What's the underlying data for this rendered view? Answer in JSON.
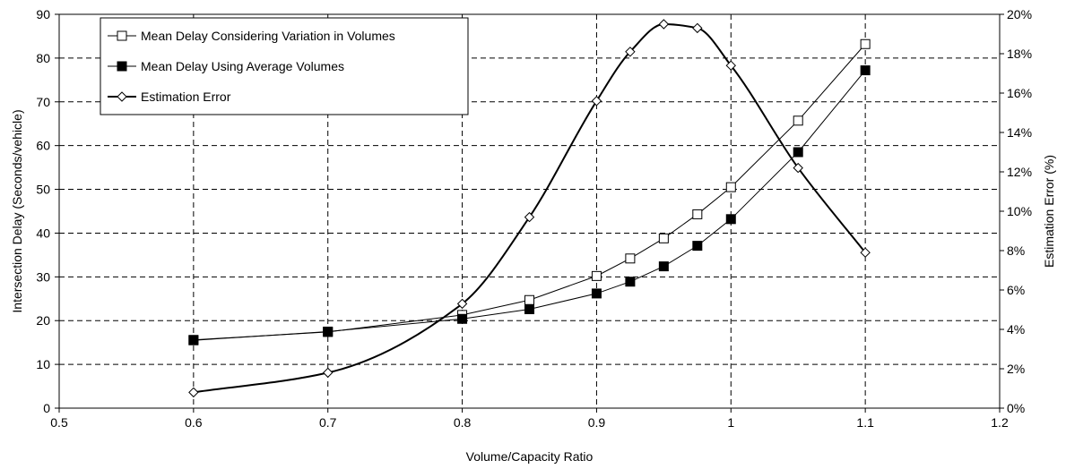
{
  "chart_data": {
    "type": "line",
    "xlabel": "Volume/Capacity Ratio",
    "ylabel": "Intersection Delay (Seconds/vehicle)",
    "y2label": "Estimation Error (%)",
    "xlim": [
      0.5,
      1.2
    ],
    "ylim": [
      0,
      90
    ],
    "y2lim": [
      0,
      20
    ],
    "x_ticks": [
      "0.5",
      "0.6",
      "0.7",
      "0.8",
      "0.9",
      "1",
      "1.1",
      "1.2"
    ],
    "y_ticks": [
      "0",
      "10",
      "20",
      "30",
      "40",
      "50",
      "60",
      "70",
      "80",
      "90"
    ],
    "y2_ticks": [
      "0%",
      "2%",
      "4%",
      "6%",
      "8%",
      "10%",
      "12%",
      "14%",
      "16%",
      "18%",
      "20%"
    ],
    "grid": true,
    "legend_position": "top-left",
    "series": [
      {
        "name": "Mean Delay Considering Variation in Volumes",
        "axis": "left",
        "marker": "open-square",
        "x": [
          0.6,
          0.7,
          0.8,
          0.85,
          0.9,
          0.925,
          0.95,
          0.975,
          1.0,
          1.05,
          1.1
        ],
        "values": [
          15.6,
          17.4,
          21.3,
          24.7,
          30.2,
          34.2,
          38.8,
          44.3,
          50.5,
          65.7,
          83.2
        ]
      },
      {
        "name": "Mean Delay Using Average Volumes",
        "axis": "left",
        "marker": "filled-square",
        "x": [
          0.6,
          0.7,
          0.8,
          0.85,
          0.9,
          0.925,
          0.95,
          0.975,
          1.0,
          1.05,
          1.1
        ],
        "values": [
          15.5,
          17.5,
          20.4,
          22.6,
          26.2,
          28.9,
          32.4,
          37.1,
          43.2,
          58.5,
          77.2
        ]
      },
      {
        "name": "Estimation Error",
        "axis": "right",
        "marker": "open-diamond",
        "x": [
          0.6,
          0.7,
          0.8,
          0.85,
          0.9,
          0.925,
          0.95,
          0.975,
          1.0,
          1.05,
          1.1
        ],
        "values": [
          0.8,
          1.8,
          5.3,
          9.7,
          15.6,
          18.1,
          19.5,
          19.3,
          17.4,
          12.2,
          7.9
        ]
      }
    ]
  }
}
